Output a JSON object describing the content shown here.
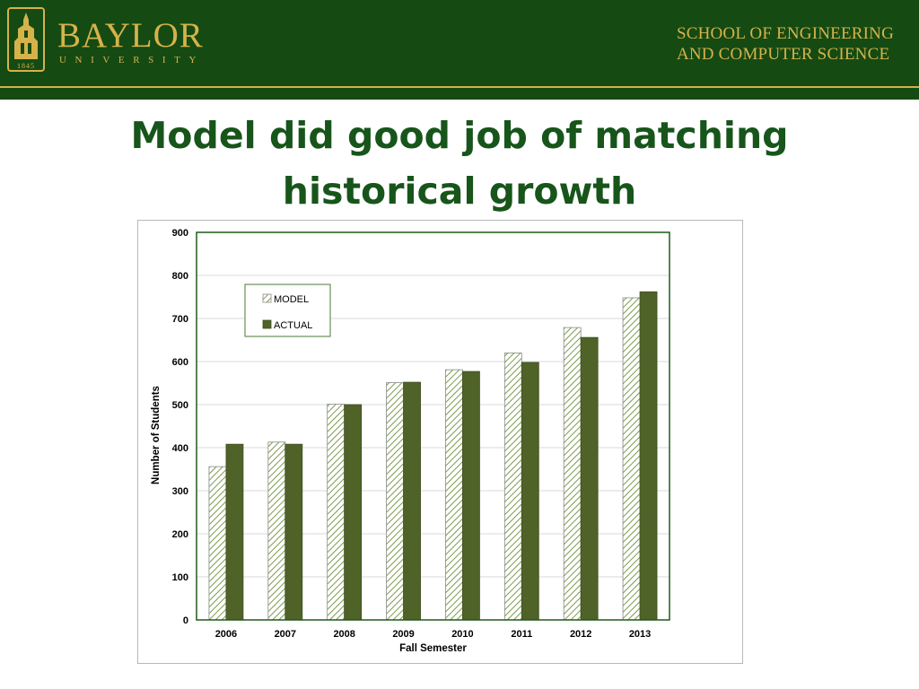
{
  "header": {
    "university_name": "BAYLOR",
    "university_subtitle": "UNIVERSITY",
    "seal_year": "1845",
    "school_line1": "SCHOOL OF ENGINEERING",
    "school_line2": "AND COMPUTER SCIENCE",
    "background_color": "#154a13",
    "accent_color": "#d6b24a"
  },
  "slide": {
    "title_line1": "Model did good job of matching",
    "title_line2": "historical growth",
    "title_color": "#17551b"
  },
  "chart_data": {
    "type": "bar",
    "categories": [
      "2006",
      "2007",
      "2008",
      "2009",
      "2010",
      "2011",
      "2012",
      "2013"
    ],
    "series": [
      {
        "name": "MODEL",
        "values": [
          356,
          413,
          501,
          551,
          581,
          620,
          679,
          748
        ],
        "pattern": "diagonal-hatch",
        "color": "#5a7a2a"
      },
      {
        "name": "ACTUAL",
        "values": [
          408,
          408,
          500,
          552,
          577,
          598,
          656,
          762
        ],
        "pattern": "solid",
        "color": "#4f6228"
      }
    ],
    "xlabel": "Fall Semester",
    "ylabel": "Number of Students",
    "ylim": [
      0,
      900
    ],
    "yticks": [
      0,
      100,
      200,
      300,
      400,
      500,
      600,
      700,
      800,
      900
    ],
    "grid": true,
    "legend_position": "top-left"
  }
}
